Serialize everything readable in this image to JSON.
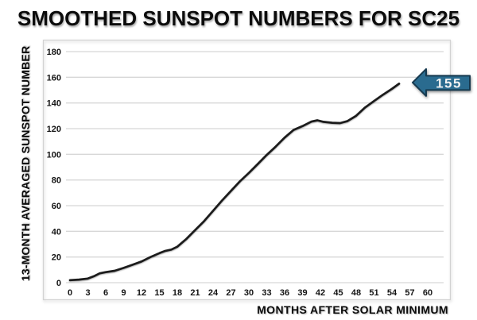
{
  "chart_data": {
    "type": "line",
    "title": "SMOOTHED SUNSPOT NUMBERS FOR SC25",
    "xlabel": "MONTHS AFTER SOLAR MINIMUM",
    "ylabel": "13-MONTH AVERAGED SUNSPOT NUMBER",
    "xlim": [
      0,
      60
    ],
    "ylim": [
      0,
      180
    ],
    "x_ticks": [
      0,
      3,
      6,
      9,
      12,
      15,
      18,
      21,
      24,
      27,
      30,
      33,
      36,
      39,
      42,
      45,
      48,
      51,
      54,
      57,
      60
    ],
    "y_ticks": [
      0,
      20,
      40,
      60,
      80,
      100,
      120,
      140,
      160,
      180
    ],
    "grid": true,
    "legend": "none",
    "line_color": "#1b1b1b",
    "grid_color": "#d7d7d7",
    "frame_color": "#d2d2d2",
    "series": [
      {
        "name": "13-month averaged sunspot number",
        "points": [
          [
            0,
            2
          ],
          [
            1.5,
            2.4
          ],
          [
            3,
            3.2
          ],
          [
            4,
            5
          ],
          [
            5,
            7.3
          ],
          [
            6,
            8.2
          ],
          [
            7.5,
            9.3
          ],
          [
            9,
            11.5
          ],
          [
            10.5,
            14
          ],
          [
            12,
            16.5
          ],
          [
            13.5,
            20
          ],
          [
            15,
            23
          ],
          [
            16,
            24.8
          ],
          [
            17,
            25.8
          ],
          [
            18,
            28
          ],
          [
            19.5,
            34
          ],
          [
            21,
            41
          ],
          [
            22.5,
            48
          ],
          [
            24,
            56
          ],
          [
            25.5,
            64
          ],
          [
            27,
            71.5
          ],
          [
            28.5,
            79
          ],
          [
            30,
            85.5
          ],
          [
            31.5,
            92.5
          ],
          [
            33,
            99.5
          ],
          [
            34.5,
            106
          ],
          [
            36,
            113
          ],
          [
            37.5,
            119
          ],
          [
            39,
            122
          ],
          [
            40.5,
            125.5
          ],
          [
            41.5,
            126.5
          ],
          [
            42.5,
            125.3
          ],
          [
            44,
            124.6
          ],
          [
            45.3,
            124.3
          ],
          [
            46.5,
            125.8
          ],
          [
            48,
            130
          ],
          [
            49.5,
            136.5
          ],
          [
            51,
            141.5
          ],
          [
            52.5,
            146.5
          ],
          [
            54,
            151
          ],
          [
            55.2,
            155
          ]
        ]
      }
    ],
    "annotation": {
      "label": "155",
      "x": 55.2,
      "y": 155,
      "arrow_fill": "#2a6b8f",
      "arrow_outline": "#16394f",
      "text_color": "#f2f2f2"
    }
  }
}
